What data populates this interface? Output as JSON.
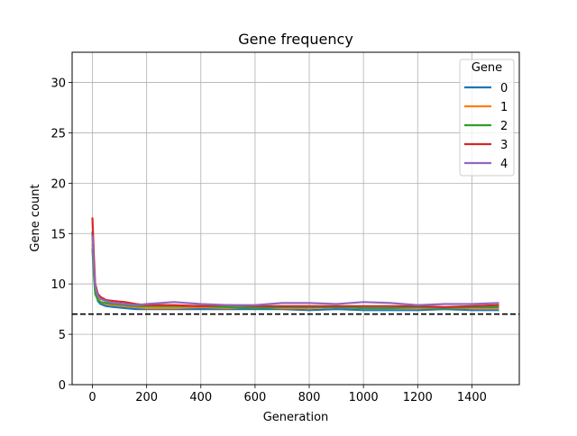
{
  "chart_data": {
    "type": "line",
    "title": "Gene frequency",
    "xlabel": "Generation",
    "ylabel": "Gene count",
    "xlim": [
      -75,
      1575
    ],
    "ylim": [
      0,
      33
    ],
    "xticks": [
      0,
      200,
      400,
      600,
      800,
      1000,
      1200,
      1400
    ],
    "yticks": [
      0,
      5,
      10,
      15,
      20,
      25,
      30
    ],
    "grid": true,
    "legend": {
      "title": "Gene",
      "position": "top-right"
    },
    "reference_line": {
      "y": 7,
      "style": "dashed",
      "color": "#000000"
    },
    "series": [
      {
        "name": "0",
        "color": "#1f77b4",
        "x": [
          0,
          5,
          10,
          20,
          30,
          50,
          80,
          120,
          160,
          200,
          300,
          400,
          500,
          600,
          700,
          800,
          900,
          1000,
          1100,
          1200,
          1300,
          1400,
          1500
        ],
        "y": [
          15.2,
          12.0,
          9.5,
          8.3,
          8.0,
          7.8,
          7.7,
          7.6,
          7.5,
          7.5,
          7.5,
          7.5,
          7.5,
          7.5,
          7.5,
          7.4,
          7.5,
          7.4,
          7.4,
          7.4,
          7.5,
          7.4,
          7.4
        ]
      },
      {
        "name": "1",
        "color": "#ff7f0e",
        "x": [
          0,
          5,
          10,
          20,
          30,
          50,
          80,
          120,
          160,
          200,
          300,
          400,
          500,
          600,
          700,
          800,
          900,
          1000,
          1100,
          1200,
          1300,
          1400,
          1500
        ],
        "y": [
          14.0,
          11.5,
          9.3,
          8.5,
          8.2,
          8.0,
          7.9,
          7.8,
          7.7,
          7.6,
          7.6,
          7.7,
          7.6,
          7.7,
          7.6,
          7.6,
          7.7,
          7.6,
          7.6,
          7.6,
          7.6,
          7.6,
          7.6
        ]
      },
      {
        "name": "2",
        "color": "#2ca02c",
        "x": [
          0,
          5,
          10,
          20,
          30,
          50,
          80,
          120,
          160,
          200,
          300,
          400,
          500,
          600,
          700,
          800,
          900,
          1000,
          1100,
          1200,
          1300,
          1400,
          1500
        ],
        "y": [
          13.5,
          11.0,
          9.0,
          8.4,
          8.2,
          8.1,
          8.0,
          7.9,
          7.8,
          7.8,
          7.8,
          7.8,
          7.7,
          7.6,
          7.7,
          7.7,
          7.7,
          7.6,
          7.6,
          7.7,
          7.6,
          7.7,
          7.7
        ]
      },
      {
        "name": "3",
        "color": "#d62728",
        "x": [
          0,
          5,
          10,
          20,
          30,
          50,
          80,
          120,
          160,
          200,
          300,
          400,
          500,
          600,
          700,
          800,
          900,
          1000,
          1100,
          1200,
          1300,
          1400,
          1500
        ],
        "y": [
          16.6,
          13.0,
          10.0,
          9.0,
          8.7,
          8.4,
          8.3,
          8.2,
          8.0,
          7.9,
          7.9,
          7.8,
          7.9,
          7.8,
          7.8,
          7.8,
          7.8,
          7.8,
          7.8,
          7.8,
          7.7,
          7.8,
          7.9
        ]
      },
      {
        "name": "4",
        "color": "#9467bd",
        "x": [
          0,
          5,
          10,
          20,
          30,
          50,
          80,
          120,
          160,
          200,
          300,
          400,
          500,
          600,
          700,
          800,
          900,
          1000,
          1100,
          1200,
          1300,
          1400,
          1500
        ],
        "y": [
          14.8,
          12.0,
          9.8,
          8.8,
          8.5,
          8.3,
          8.1,
          8.0,
          7.9,
          8.0,
          8.2,
          8.0,
          7.9,
          7.9,
          8.1,
          8.1,
          8.0,
          8.2,
          8.1,
          7.9,
          8.0,
          8.0,
          8.1
        ]
      }
    ]
  }
}
